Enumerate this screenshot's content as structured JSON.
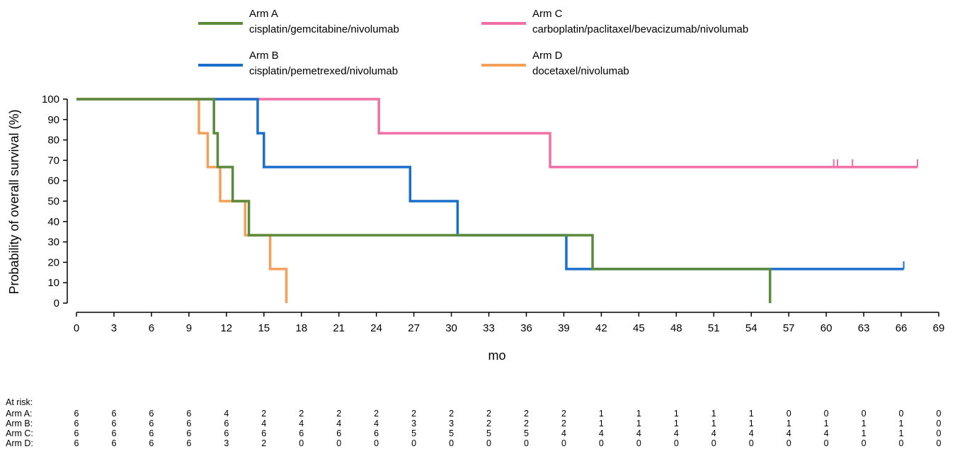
{
  "chart_data": {
    "type": "line",
    "step": true,
    "ylabel": "Probability of overall survival (%)",
    "xlabel": "mo",
    "xlim": [
      0,
      69
    ],
    "ylim": [
      0,
      100
    ],
    "xticks": [
      0,
      3,
      6,
      9,
      12,
      15,
      18,
      21,
      24,
      27,
      30,
      33,
      36,
      39,
      42,
      45,
      48,
      51,
      54,
      57,
      60,
      63,
      66,
      69
    ],
    "yticks": [
      0,
      10,
      20,
      30,
      40,
      50,
      60,
      70,
      80,
      90,
      100
    ],
    "legend_placement": "top",
    "series": [
      {
        "name": "Arm A",
        "regimen": "cisplatin/gemcitabine/nivolumab",
        "color": "#5a8a3a",
        "steps": [
          [
            0,
            100
          ],
          [
            11,
            83.3
          ],
          [
            11.3,
            66.7
          ],
          [
            12.5,
            50
          ],
          [
            13.8,
            33.3
          ],
          [
            41.3,
            16.7
          ],
          [
            55.5,
            0
          ]
        ],
        "end": 55.5,
        "censor": []
      },
      {
        "name": "Arm B",
        "regimen": "cisplatin/pemetrexed/nivolumab",
        "color": "#1b6fcc",
        "steps": [
          [
            0,
            100
          ],
          [
            14.5,
            83.3
          ],
          [
            15,
            66.7
          ],
          [
            26.7,
            50
          ],
          [
            30.5,
            33.3
          ],
          [
            39.2,
            16.7
          ]
        ],
        "end": 66.2,
        "censor": [
          66.2
        ]
      },
      {
        "name": "Arm C",
        "regimen": "carboplatin/paclitaxel/bevacizumab/nivolumab",
        "color": "#f06fa6",
        "steps": [
          [
            0,
            100
          ],
          [
            24.2,
            83.3
          ],
          [
            37.9,
            66.7
          ]
        ],
        "end": 67.3,
        "censor": [
          60.6,
          60.9,
          62.1,
          67.3
        ]
      },
      {
        "name": "Arm D",
        "regimen": "docetaxel/nivolumab",
        "color": "#f5a05a",
        "steps": [
          [
            0,
            100
          ],
          [
            9.8,
            83.3
          ],
          [
            10.5,
            66.7
          ],
          [
            11.5,
            50
          ],
          [
            13.5,
            33.3
          ],
          [
            15.5,
            16.7
          ],
          [
            16.8,
            0
          ]
        ],
        "end": 16.8,
        "censor": []
      }
    ],
    "at_risk": {
      "title": "At risk:",
      "times": [
        0,
        3,
        6,
        9,
        12,
        15,
        18,
        21,
        24,
        27,
        30,
        33,
        36,
        39,
        42,
        45,
        48,
        51,
        54,
        57,
        60,
        63,
        66,
        69
      ],
      "rows": [
        {
          "label": "Arm A:",
          "values": [
            6,
            6,
            6,
            6,
            4,
            2,
            2,
            2,
            2,
            2,
            2,
            2,
            2,
            2,
            1,
            1,
            1,
            1,
            1,
            0,
            0,
            0,
            0,
            0
          ]
        },
        {
          "label": "Arm B:",
          "values": [
            6,
            6,
            6,
            6,
            6,
            4,
            4,
            4,
            4,
            3,
            3,
            2,
            2,
            2,
            1,
            1,
            1,
            1,
            1,
            1,
            1,
            1,
            1,
            0
          ]
        },
        {
          "label": "Arm C:",
          "values": [
            6,
            6,
            6,
            6,
            6,
            6,
            6,
            6,
            6,
            5,
            5,
            5,
            5,
            4,
            4,
            4,
            4,
            4,
            4,
            4,
            4,
            1,
            1,
            0
          ]
        },
        {
          "label": "Arm D:",
          "values": [
            6,
            6,
            6,
            6,
            3,
            2,
            0,
            0,
            0,
            0,
            0,
            0,
            0,
            0,
            0,
            0,
            0,
            0,
            0,
            0,
            0,
            0,
            0,
            0
          ]
        }
      ]
    }
  }
}
